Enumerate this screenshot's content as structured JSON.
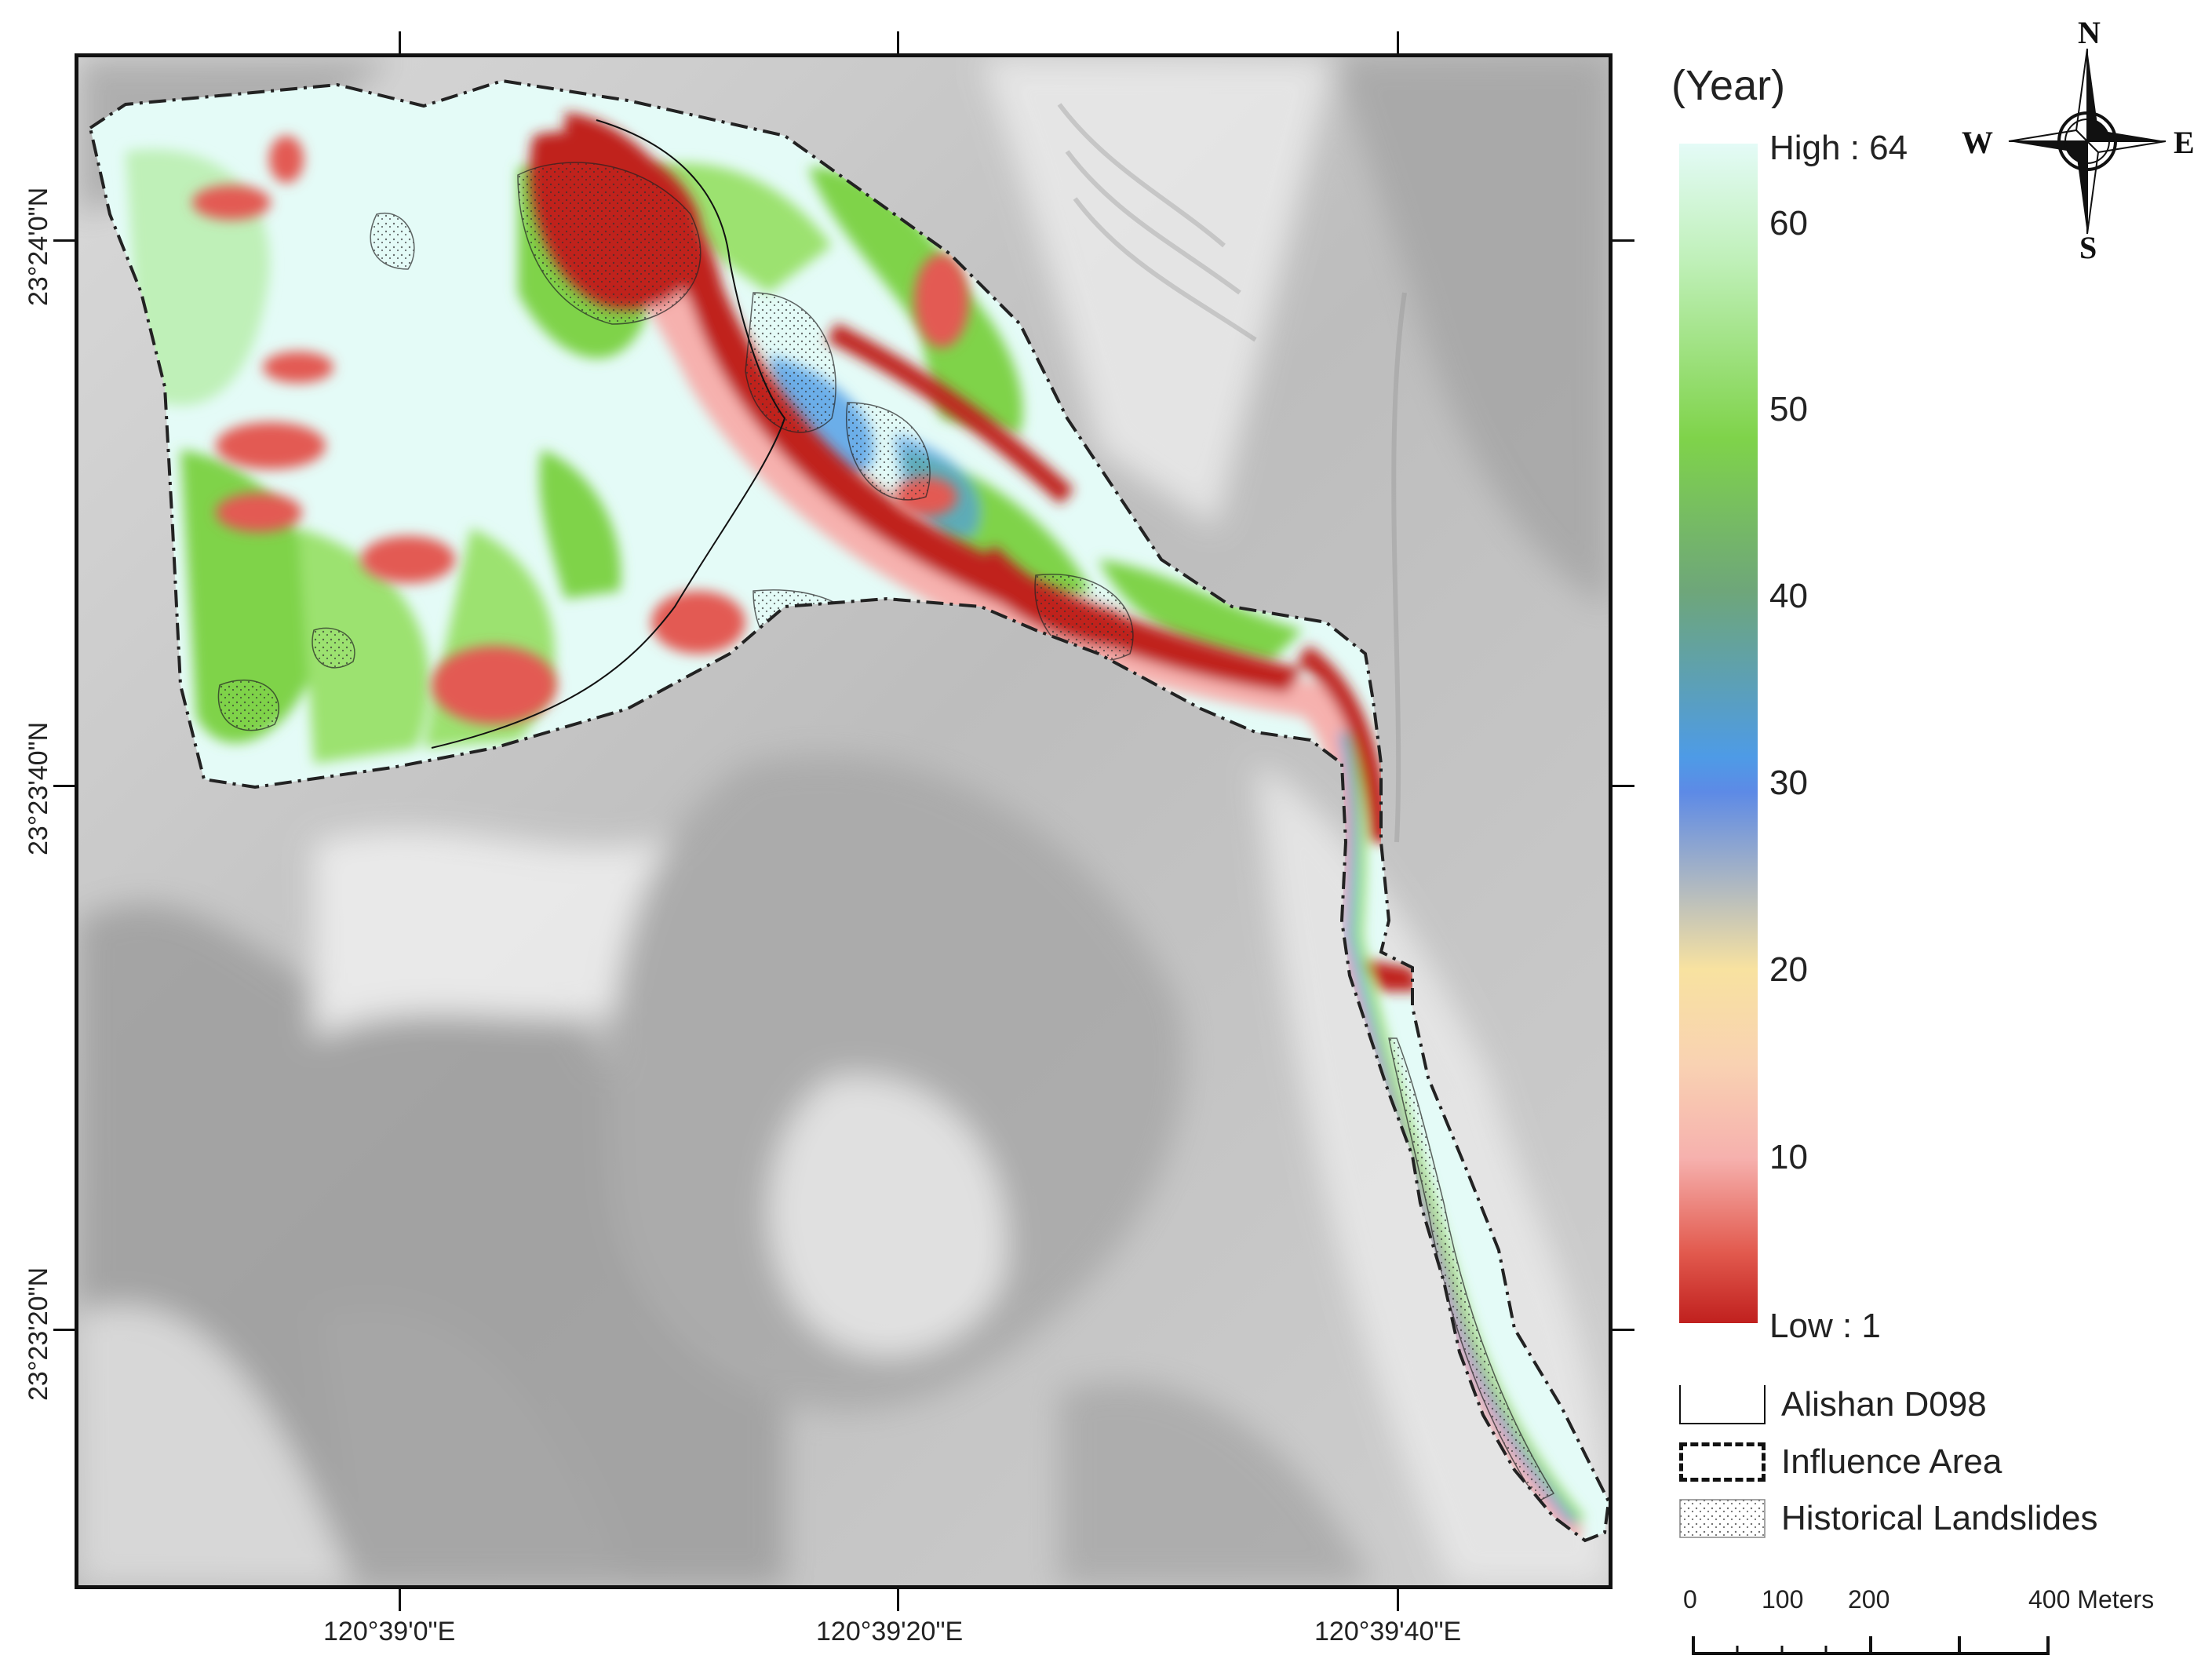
{
  "legend": {
    "title": "(Year)",
    "high_label": "High : 64",
    "low_label": "Low : 1",
    "ticks": [
      "60",
      "50",
      "40",
      "30",
      "20",
      "10"
    ],
    "ramp_colors": {
      "low": "#c0201e",
      "pink": "#f6b1ae",
      "peach": "#f9d2b2",
      "yellow": "#f8e2a0",
      "blue": "#4e9be6",
      "teal": "#6ea67a",
      "green": "#7fd34a",
      "high": "#e4fbf7"
    },
    "items": [
      {
        "label": "Alishan D098",
        "symbol": "thin-line"
      },
      {
        "label": "Influence Area",
        "symbol": "dash-dot-boundary"
      },
      {
        "label": "Historical Landslides",
        "symbol": "stippled-polygon"
      }
    ]
  },
  "axes": {
    "x_ticks": [
      "120°39'0\"E",
      "120°39'20\"E",
      "120°39'40\"E"
    ],
    "y_ticks": [
      "23°24'0\"N",
      "23°23'40\"N",
      "23°23'20\"N"
    ]
  },
  "compass": {
    "n": "N",
    "s": "S",
    "e": "E",
    "w": "W",
    "icon": "north-arrow-compass-rose"
  },
  "scale_bar": {
    "labels": [
      "0",
      "100",
      "200",
      "400 Meters"
    ]
  }
}
